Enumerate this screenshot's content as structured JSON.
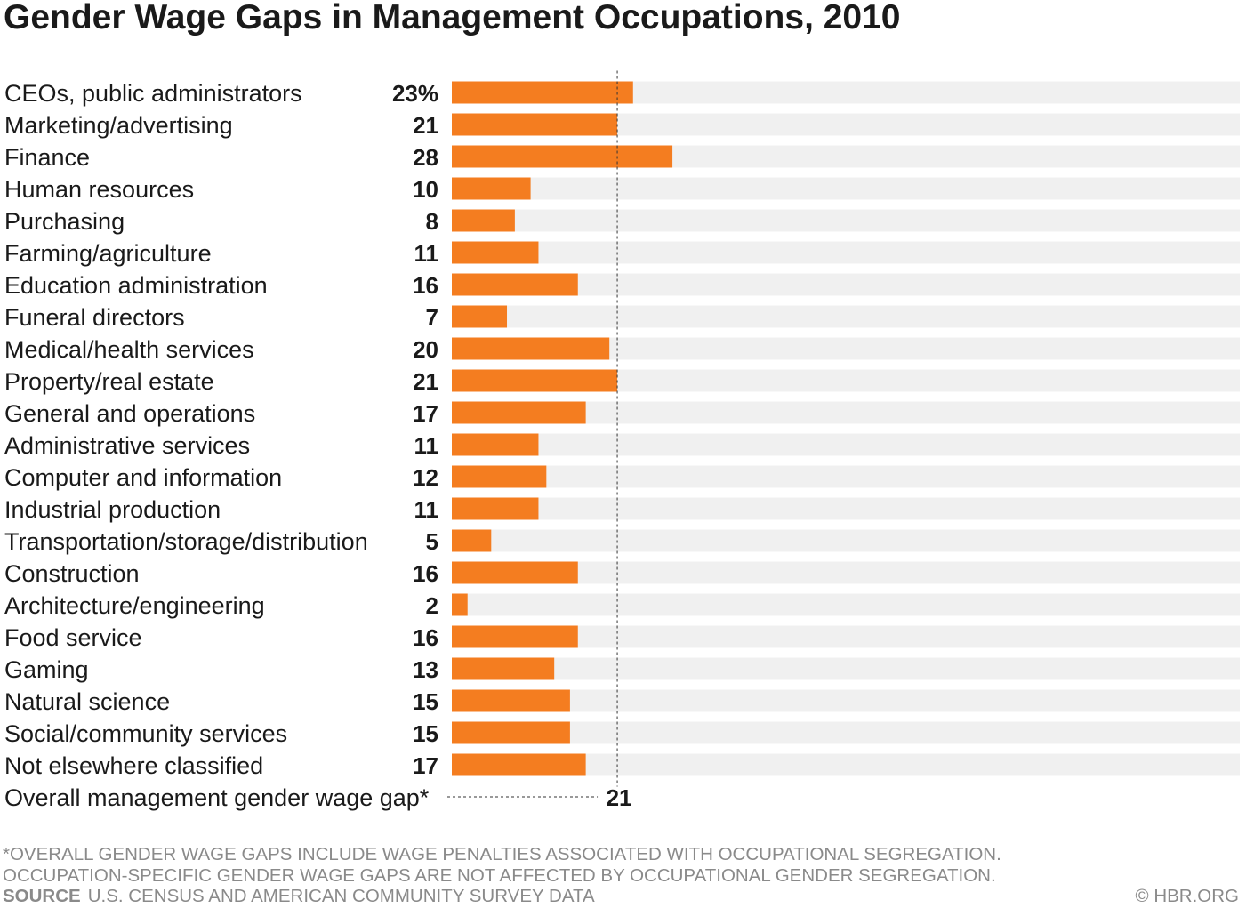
{
  "title": "Gender Wage Gaps in Management Occupations, 2010",
  "chart_data": {
    "type": "bar",
    "orientation": "horizontal",
    "categories": [
      "CEOs, public administrators",
      "Marketing/advertising",
      "Finance",
      "Human resources",
      "Purchasing",
      "Farming/agriculture",
      "Education administration",
      "Funeral directors",
      "Medical/health services",
      "Property/real estate",
      "General and operations",
      "Administrative services",
      "Computer and information",
      "Industrial production",
      "Transportation/storage/distribution",
      "Construction",
      "Architecture/engineering",
      "Food service",
      "Gaming",
      "Natural science",
      "Social/community services",
      "Not elsewhere classified"
    ],
    "values": [
      23,
      21,
      28,
      10,
      8,
      11,
      16,
      7,
      20,
      21,
      17,
      11,
      12,
      11,
      5,
      16,
      2,
      16,
      13,
      15,
      15,
      17
    ],
    "value_labels": [
      "23%",
      "21",
      "28",
      "10",
      "8",
      "11",
      "16",
      "7",
      "20",
      "21",
      "17",
      "11",
      "12",
      "11",
      "5",
      "16",
      "2",
      "16",
      "13",
      "15",
      "15",
      "17"
    ],
    "xlim": [
      0,
      100
    ],
    "reference_line": {
      "label": "Overall management gender wage gap*",
      "value": 21,
      "value_label": "21"
    },
    "colors": {
      "bar": "#f47d20",
      "track": "#f0f0f0",
      "reference_line": "#333333"
    }
  },
  "footnotes": [
    "*OVERALL GENDER WAGE GAPS INCLUDE WAGE PENALTIES ASSOCIATED WITH OCCUPATIONAL SEGREGATION.",
    "OCCUPATION-SPECIFIC GENDER WAGE GAPS ARE NOT AFFECTED BY OCCUPATIONAL GENDER SEGREGATION."
  ],
  "source": {
    "label": "SOURCE",
    "text": "U.S. CENSUS AND AMERICAN COMMUNITY SURVEY DATA"
  },
  "credit": "© HBR.ORG"
}
